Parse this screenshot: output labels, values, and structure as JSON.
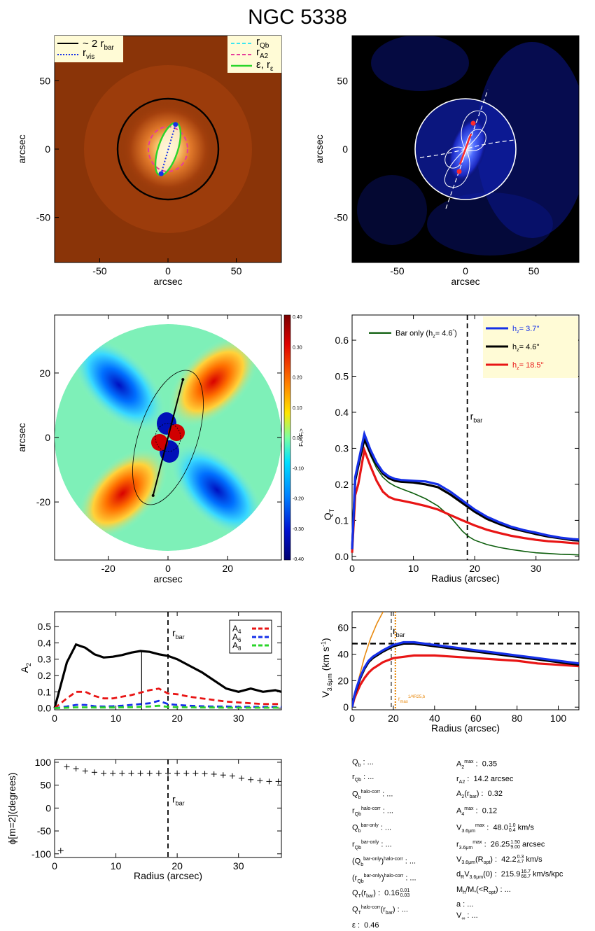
{
  "page": {
    "title": "NGC 5338"
  },
  "colors": {
    "black": "#000000",
    "blue": "#1530e8",
    "red": "#e81515",
    "green": "#2ad52a",
    "darkgreen": "#0d5e0d",
    "cyan": "#3ce6f0",
    "magenta": "#e63d9a",
    "orange": "#e88a10",
    "legendbg": "#fffbd6"
  },
  "chart_data": [
    {
      "id": "image-panel",
      "type": "image",
      "xlabel": "arcsec",
      "ylabel": "arcsec",
      "xlim": [
        -83,
        83
      ],
      "ylim": [
        -83,
        83
      ],
      "xticks": [
        -50,
        0,
        50
      ],
      "yticks": [
        -50,
        0,
        50
      ],
      "legend_left": [
        {
          "label": "~ 2 r",
          "sub": "bar",
          "style": "solid",
          "color": "#000000"
        },
        {
          "label": "r",
          "sub": "vis",
          "style": "dotted",
          "color": "#1530e8"
        }
      ],
      "legend_right": [
        {
          "label": "r",
          "sub": "Qb",
          "style": "dashed",
          "color": "#3ce6f0"
        },
        {
          "label": "r",
          "sub": "A2",
          "style": "dashed",
          "color": "#e63d9a"
        },
        {
          "label": "ε, r",
          "sub": "ε",
          "style": "solid",
          "color": "#2ad52a"
        }
      ],
      "circle_radius": 37,
      "vis_points": [
        [
          5.5,
          18
        ],
        [
          -5,
          -18
        ]
      ]
    },
    {
      "id": "force-map-panel",
      "type": "image",
      "xlabel": "arcsec",
      "ylabel": "arcsec",
      "xlim": [
        -83,
        83
      ],
      "ylim": [
        -83,
        83
      ],
      "xticks": [
        -50,
        0,
        50
      ],
      "yticks": [
        -50,
        0,
        50
      ],
      "circle_radius": 37
    },
    {
      "id": "ratio-map-panel",
      "type": "heatmap",
      "xlabel": "arcsec",
      "ylabel": "arcsec",
      "xlim": [
        -38,
        38
      ],
      "ylim": [
        -38,
        38
      ],
      "xticks": [
        -20,
        0,
        20
      ],
      "yticks": [
        -20,
        0,
        20
      ],
      "colorbar_label": "Fₜ/<Fᵣ>",
      "colorbar_ticks": [
        "0.40",
        "0.30",
        "0.20",
        "0.10",
        "0.00",
        "-0.10",
        "-0.20",
        "-0.30",
        "-0.40"
      ],
      "bar_line": [
        [
          5,
          18
        ],
        [
          -5,
          -18
        ]
      ]
    },
    {
      "id": "qt-panel",
      "type": "line",
      "xlabel": "Radius (arcsec)",
      "ylabel": "Q",
      "ylabel_sub": "T",
      "xlim": [
        0,
        37
      ],
      "ylim": [
        -0.01,
        0.67
      ],
      "xticks": [
        0,
        10,
        20,
        30
      ],
      "yticks": [
        0.0,
        0.1,
        0.2,
        0.3,
        0.4,
        0.5,
        0.6
      ],
      "ytick_labels": [
        "0.0",
        "0.1",
        "0.2",
        "0.3",
        "0.4",
        "0.5",
        "0.6"
      ],
      "rbar": 18.8,
      "rbar_label": "r",
      "rbar_sub": "bar",
      "legend_inner": {
        "text": "Bar only (h",
        "sub": "z",
        "value": "=  4.6",
        "sup": "′′",
        "color": "#0d5e0d"
      },
      "legend_box": [
        {
          "pre": "h",
          "sub": "z",
          "value": "=   3.7''",
          "color": "#1530e8"
        },
        {
          "pre": "h",
          "sub": "z",
          "value": "=   4.6''",
          "color": "#000000"
        },
        {
          "pre": "h",
          "sub": "z",
          "value": "= 18.5''",
          "color": "#e81515"
        }
      ],
      "series": [
        {
          "name": "h_z = 3.7''",
          "color": "#1530e8",
          "width": 3.2,
          "x": [
            0,
            0.5,
            1,
            2,
            3,
            4,
            5,
            6,
            7,
            8,
            10,
            12,
            14,
            16,
            18,
            20,
            22,
            24,
            26,
            28,
            30,
            32,
            34,
            36,
            37
          ],
          "y": [
            0.02,
            0.22,
            0.26,
            0.34,
            0.295,
            0.26,
            0.235,
            0.222,
            0.215,
            0.212,
            0.21,
            0.208,
            0.2,
            0.18,
            0.155,
            0.13,
            0.11,
            0.095,
            0.082,
            0.073,
            0.066,
            0.058,
            0.052,
            0.048,
            0.047
          ]
        },
        {
          "name": "h_z = 4.6''",
          "color": "#000000",
          "width": 3.2,
          "x": [
            0,
            0.5,
            1,
            2,
            3,
            4,
            5,
            6,
            7,
            8,
            10,
            12,
            14,
            16,
            18,
            20,
            22,
            24,
            26,
            28,
            30,
            32,
            34,
            36,
            37
          ],
          "y": [
            0.02,
            0.21,
            0.25,
            0.325,
            0.285,
            0.255,
            0.23,
            0.217,
            0.21,
            0.207,
            0.205,
            0.2,
            0.192,
            0.172,
            0.148,
            0.124,
            0.104,
            0.09,
            0.078,
            0.07,
            0.062,
            0.055,
            0.05,
            0.045,
            0.044
          ]
        },
        {
          "name": "h_z = 18.5''",
          "color": "#e81515",
          "width": 3.2,
          "x": [
            0,
            0.5,
            1,
            2,
            3,
            4,
            5,
            6,
            7,
            8,
            10,
            12,
            14,
            16,
            18,
            20,
            22,
            24,
            26,
            28,
            30,
            32,
            34,
            36,
            37
          ],
          "y": [
            0.01,
            0.17,
            0.2,
            0.295,
            0.25,
            0.21,
            0.18,
            0.165,
            0.158,
            0.155,
            0.148,
            0.14,
            0.13,
            0.115,
            0.1,
            0.086,
            0.074,
            0.065,
            0.057,
            0.051,
            0.046,
            0.042,
            0.04,
            0.037,
            0.036
          ]
        },
        {
          "name": "Bar only",
          "color": "#0d5e0d",
          "width": 1.6,
          "x": [
            0,
            0.5,
            1,
            2,
            3,
            4,
            5,
            6,
            7,
            8,
            10,
            12,
            14,
            16,
            17,
            18,
            19,
            20,
            22,
            24,
            26,
            28,
            30,
            32,
            34,
            36,
            37
          ],
          "y": [
            0.02,
            0.21,
            0.25,
            0.33,
            0.28,
            0.245,
            0.22,
            0.205,
            0.195,
            0.188,
            0.175,
            0.16,
            0.14,
            0.11,
            0.09,
            0.07,
            0.055,
            0.045,
            0.033,
            0.025,
            0.019,
            0.014,
            0.01,
            0.008,
            0.006,
            0.005,
            0.004
          ]
        }
      ]
    },
    {
      "id": "a2-panel",
      "type": "line",
      "xlabel": "",
      "ylabel": "A",
      "ylabel_sub": "2",
      "xlim": [
        0,
        37
      ],
      "ylim": [
        -0.01,
        0.59
      ],
      "xticks": [
        0,
        10,
        20,
        30
      ],
      "yticks": [
        0.0,
        0.1,
        0.2,
        0.3,
        0.4,
        0.5
      ],
      "ytick_labels": [
        "0.0",
        "0.1",
        "0.2",
        "0.3",
        "0.4",
        "0.5"
      ],
      "rbar": 18.5,
      "rbar_label": "r",
      "rbar_sub": "bar",
      "vline_solid": 14.2,
      "vline_solid_top": 0.35,
      "legend": [
        {
          "pre": "A",
          "sub": "4",
          "color": "#e81515"
        },
        {
          "pre": "A",
          "sub": "6",
          "color": "#1530e8"
        },
        {
          "pre": "A",
          "sub": "8",
          "color": "#2ad52a"
        }
      ],
      "series": [
        {
          "name": "A2",
          "color": "#000000",
          "width": 3.2,
          "dash": "",
          "x": [
            0,
            2,
            3.5,
            5,
            6.5,
            8,
            9.5,
            11,
            12.5,
            14,
            15.5,
            17,
            18.5,
            20,
            22,
            24,
            26,
            28,
            30,
            32,
            34,
            36,
            37
          ],
          "y": [
            0.0,
            0.28,
            0.39,
            0.37,
            0.33,
            0.31,
            0.315,
            0.325,
            0.34,
            0.35,
            0.345,
            0.33,
            0.32,
            0.3,
            0.26,
            0.22,
            0.17,
            0.12,
            0.1,
            0.12,
            0.1,
            0.11,
            0.1
          ]
        },
        {
          "name": "A4",
          "color": "#e81515",
          "width": 2.8,
          "dash": "8,5",
          "x": [
            0,
            2,
            3.5,
            5,
            6.5,
            8,
            9.5,
            11,
            12.5,
            14,
            15.5,
            17,
            18.5,
            20,
            22,
            24,
            26,
            28,
            30,
            32,
            34,
            36,
            37
          ],
          "y": [
            0.0,
            0.06,
            0.1,
            0.1,
            0.075,
            0.06,
            0.06,
            0.07,
            0.08,
            0.095,
            0.11,
            0.12,
            0.09,
            0.085,
            0.07,
            0.06,
            0.05,
            0.04,
            0.035,
            0.03,
            0.025,
            0.025,
            0.025
          ]
        },
        {
          "name": "A6",
          "color": "#1530e8",
          "width": 2.8,
          "dash": "8,5",
          "x": [
            0,
            2,
            3.5,
            5,
            6.5,
            8,
            9.5,
            11,
            12.5,
            14,
            15.5,
            17,
            18.5,
            20,
            22,
            24,
            26,
            28,
            30,
            32,
            34,
            36,
            37
          ],
          "y": [
            0.0,
            0.01,
            0.02,
            0.02,
            0.012,
            0.01,
            0.012,
            0.015,
            0.02,
            0.025,
            0.03,
            0.045,
            0.025,
            0.02,
            0.015,
            0.012,
            0.01,
            0.01,
            0.008,
            0.008,
            0.007,
            0.007,
            0.007
          ]
        },
        {
          "name": "A8",
          "color": "#2ad52a",
          "width": 2.8,
          "dash": "8,5",
          "x": [
            0,
            2,
            3.5,
            5,
            6.5,
            8,
            9.5,
            11,
            12.5,
            14,
            15.5,
            17,
            18.5,
            20,
            22,
            24,
            26,
            28,
            30,
            32,
            34,
            36,
            37
          ],
          "y": [
            0.0,
            0.003,
            0.005,
            0.005,
            0.004,
            0.004,
            0.004,
            0.005,
            0.006,
            0.008,
            0.01,
            0.015,
            0.008,
            0.006,
            0.005,
            0.004,
            0.004,
            0.003,
            0.003,
            0.003,
            0.003,
            0.003,
            0.003
          ]
        }
      ]
    },
    {
      "id": "rotation-panel",
      "type": "line",
      "xlabel": "Radius (arcsec)",
      "ylabel": "V",
      "ylabel_sub": "3.6μm",
      "ylabel_tail": " (km s",
      "ylabel_sup": "-1",
      "ylabel_end": ")",
      "xlim": [
        0,
        110
      ],
      "ylim": [
        -2,
        72
      ],
      "xticks": [
        0,
        20,
        40,
        60,
        80,
        100
      ],
      "yticks": [
        0,
        20,
        40,
        60
      ],
      "rbar": 19,
      "rbar_label": "r",
      "rbar_sub": "bar",
      "vmax": 48,
      "r_vmax": 21,
      "rmax_label": "r",
      "rmax_sub": "max",
      "rmax_sup": "1/4R25,b",
      "series": [
        {
          "name": "h_z = 3.7''",
          "color": "#1530e8",
          "width": 3.2,
          "x": [
            0,
            1,
            2,
            4,
            6,
            8,
            10,
            15,
            20,
            25,
            30,
            40,
            50,
            60,
            70,
            80,
            90,
            100,
            110
          ],
          "y": [
            0,
            8,
            14,
            23,
            30,
            35,
            38,
            43,
            47,
            49,
            49,
            47,
            45,
            43,
            41,
            39,
            37,
            35,
            33
          ]
        },
        {
          "name": "h_z = 4.6''",
          "color": "#000000",
          "width": 3.2,
          "x": [
            0,
            1,
            2,
            4,
            6,
            8,
            10,
            15,
            20,
            25,
            30,
            40,
            50,
            60,
            70,
            80,
            90,
            100,
            110
          ],
          "y": [
            0,
            8,
            13,
            22,
            29,
            34,
            37,
            42,
            46,
            48,
            48,
            46,
            44,
            42,
            40,
            38,
            36,
            34,
            32
          ]
        },
        {
          "name": "h_z = 18.5''",
          "color": "#e81515",
          "width": 3.2,
          "x": [
            0,
            1,
            2,
            4,
            6,
            8,
            10,
            15,
            20,
            25,
            30,
            40,
            50,
            60,
            70,
            80,
            90,
            100,
            110
          ],
          "y": [
            0,
            6,
            10,
            17,
            22,
            26,
            29,
            34,
            37,
            38,
            39,
            39,
            38,
            37,
            36,
            35,
            33,
            32,
            31
          ]
        },
        {
          "name": "inner fit",
          "color": "#e88a10",
          "width": 1.6,
          "x": [
            0,
            3,
            6,
            9,
            12,
            15
          ],
          "y": [
            0,
            20,
            38,
            52,
            63,
            72
          ]
        }
      ]
    },
    {
      "id": "phase-panel",
      "type": "scatter",
      "xlabel": "Radius (arcsec)",
      "ylabel": "ϕ[m=2](degrees)",
      "xlim": [
        0,
        37
      ],
      "ylim": [
        -108,
        106
      ],
      "xticks": [
        0,
        10,
        20,
        30
      ],
      "yticks": [
        -100,
        -50,
        0,
        50,
        100
      ],
      "rbar": 18.5,
      "rbar_label": "r",
      "rbar_sub": "bar",
      "x": [
        1,
        2,
        3.5,
        5,
        6.5,
        8,
        9.5,
        11,
        12.5,
        14,
        15.5,
        17,
        18.5,
        20,
        21.5,
        23,
        24.5,
        26,
        27.5,
        29,
        30.5,
        32,
        33.5,
        35,
        36.5
      ],
      "y": [
        -93,
        90,
        86,
        81,
        78,
        76,
        76,
        76,
        76,
        76,
        76,
        76,
        76,
        76,
        76,
        76,
        75,
        74,
        72,
        70,
        65,
        62,
        60,
        58,
        58
      ]
    }
  ],
  "params_left": [
    {
      "pre": "Q",
      "sub": "b",
      "text": " : ..."
    },
    {
      "pre": "r",
      "sub": "Qb",
      "text": " : ..."
    },
    {
      "pre": "Q",
      "sub": "b",
      "sup": "halo-corr",
      "text": " : ..."
    },
    {
      "pre": "r",
      "sub": "Qb",
      "sup": "halo-corr",
      "text": " : ..."
    },
    {
      "pre": "Q",
      "sub": "b",
      "sup": "bar-only",
      "text": " : ..."
    },
    {
      "pre": "r",
      "sub": "Qb",
      "sup": "bar-only",
      "text": " : ..."
    },
    {
      "pre": "(Q",
      "sub": "b",
      "sup": "bar-only",
      "text": ")",
      "sup2": "halo-corr",
      "text2": " : ..."
    },
    {
      "pre": "(r",
      "sub": "Qb",
      "sup": "bar-only",
      "text": ")",
      "sup2": "halo-corr",
      "text2": " : ..."
    },
    {
      "pre": "Q",
      "sub": "T",
      "text": "(r",
      "sub2": "bar",
      "text2": ") :  0.16",
      "pm_up": "0.01",
      "pm_dn": "0.03"
    },
    {
      "pre": "Q",
      "sub": "T",
      "sup": "halo-corr",
      "text": "(r",
      "sub2": "bar",
      "text2": ") : ..."
    },
    {
      "pre": "ε",
      "text": " :  0.46"
    }
  ],
  "params_right": [
    {
      "pre": "A",
      "sub": "2",
      "sup": "max",
      "text": " :  0.35"
    },
    {
      "pre": "r",
      "sub": "A2",
      "text": " :  14.2 arcsec"
    },
    {
      "pre": "A",
      "sub": "2",
      "text": "(r",
      "sub2": "bar",
      "text2": ") :  0.32"
    },
    {
      "pre": "A",
      "sub": "4",
      "sup": "max",
      "text": " :  0.12"
    },
    {
      "pre": "V",
      "sub": "3.6μm",
      "sup": "max",
      "text": " :  48.0",
      "pm_up": "1.0",
      "pm_dn": "0.4",
      "text3": " km/s"
    },
    {
      "pre": "r",
      "sub": "3.6μm",
      "sup": "max",
      "text": " :  26.25",
      "pm_up": "1.50",
      "pm_dn": "9.00",
      "text3": " arcsec"
    },
    {
      "pre": "V",
      "sub": "3.6μm",
      "text": "(R",
      "sub2": "opt",
      "text2": ") :  42.2",
      "pm_up": "0.3",
      "pm_dn": "4.7",
      "text3": " km/s"
    },
    {
      "pre": "d",
      "sub": "R",
      "text": "V",
      "sub2": "3.6μm",
      "text2": "(0) :  215.9",
      "pm_up": "16.7",
      "pm_dn": "66.7",
      "text3": " km/s/kpc"
    },
    {
      "pre": "M",
      "sub": "h",
      "text": "/M",
      "sub2": "*",
      "text2": "(<R",
      "sub3": "opt",
      "text4": ") : ..."
    },
    {
      "pre": "a",
      "text": " : ..."
    },
    {
      "pre": "V",
      "sub": "∞",
      "text": " : ..."
    }
  ]
}
